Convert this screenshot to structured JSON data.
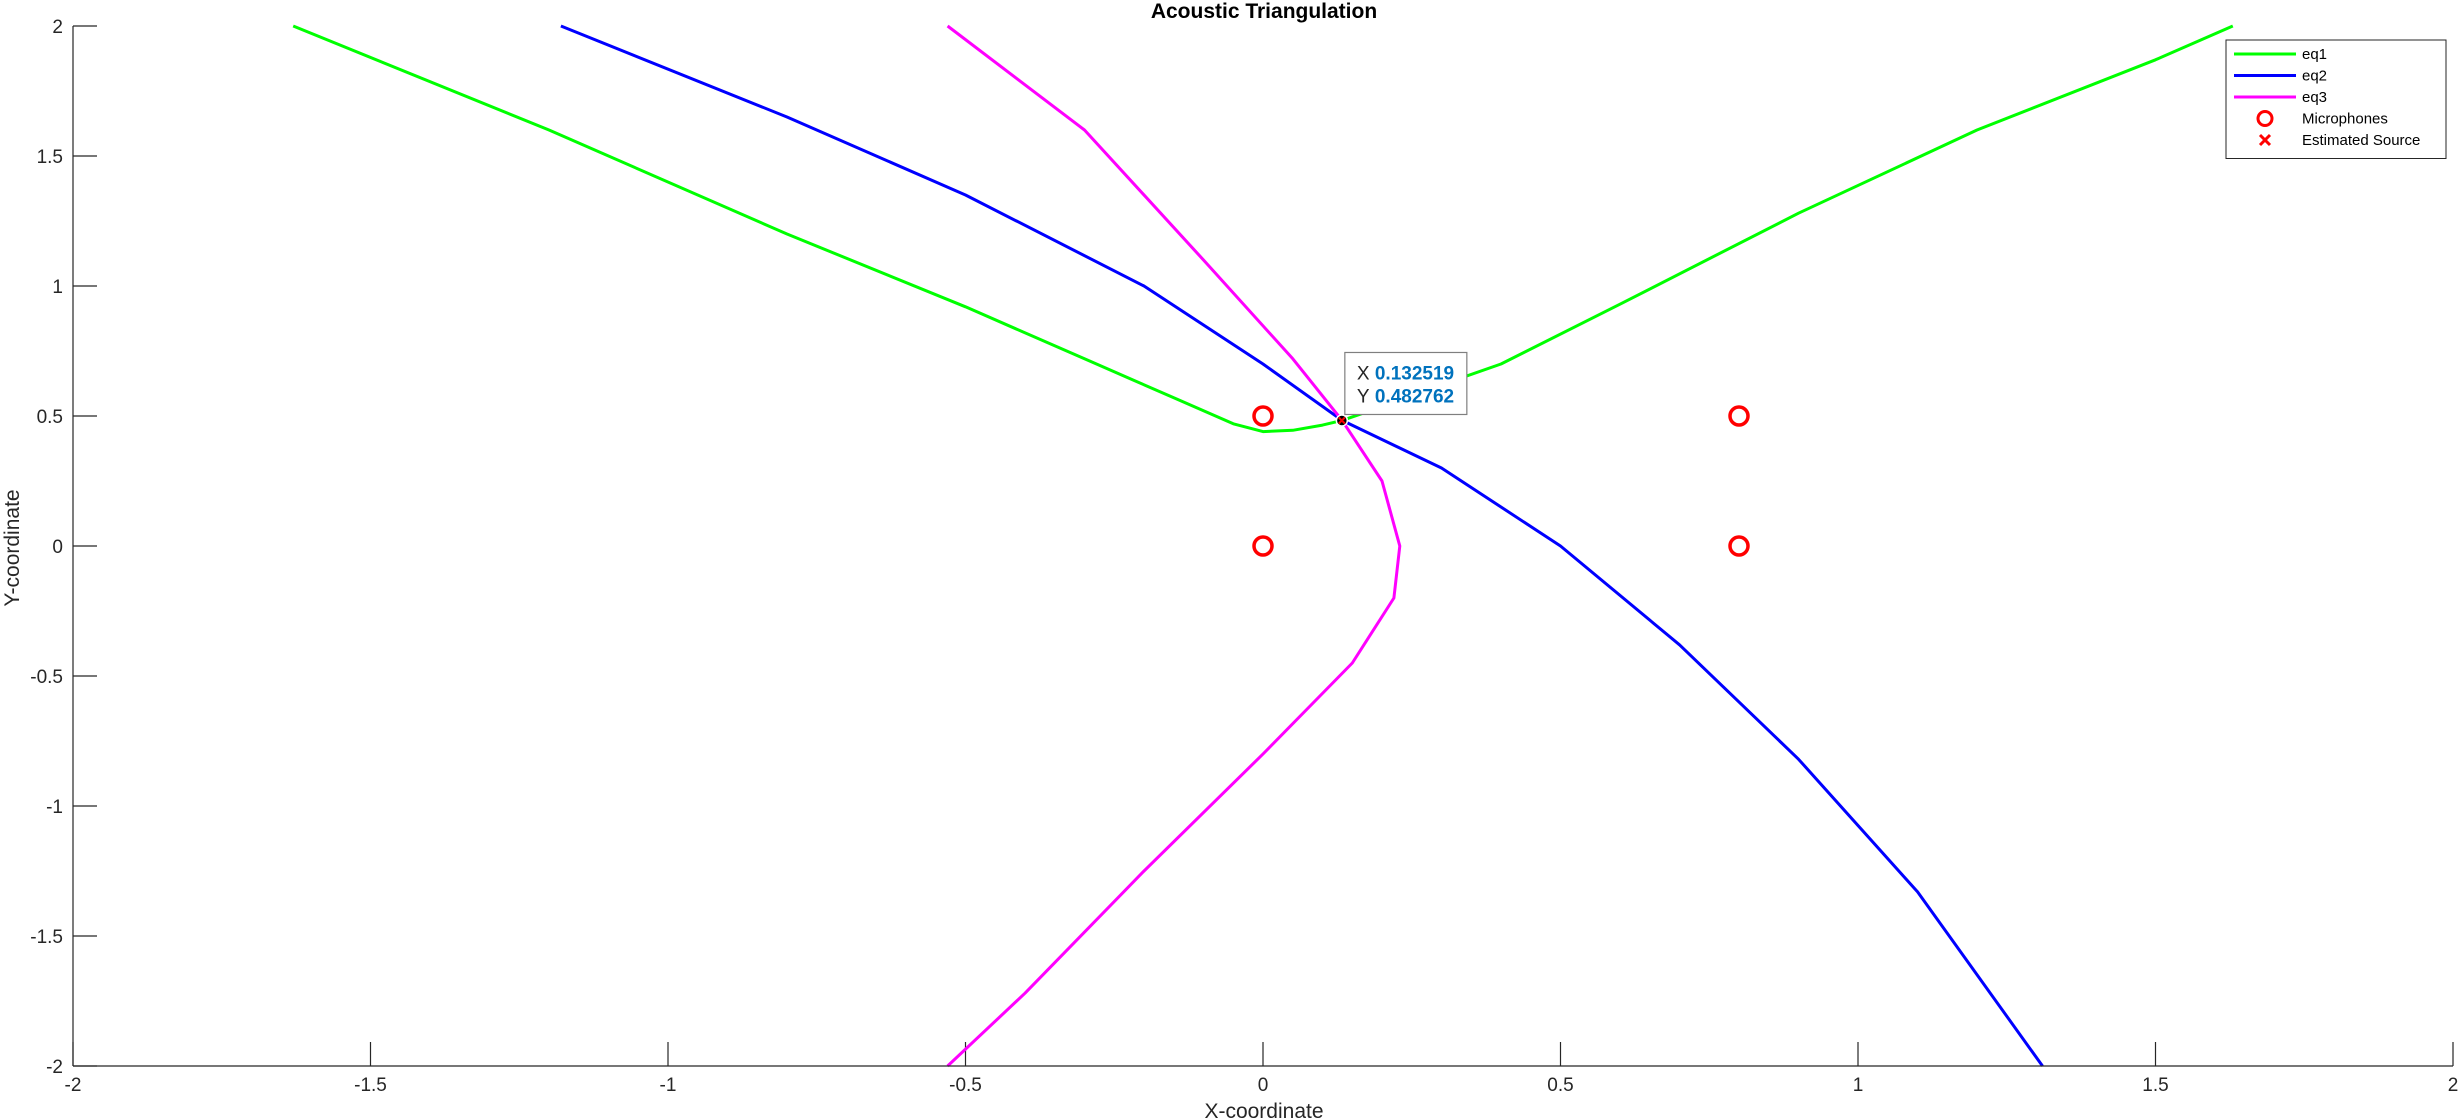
{
  "chart_data": {
    "type": "line",
    "title": "Acoustic Triangulation",
    "xlabel": "X-coordinate",
    "ylabel": "Y-coordinate",
    "xlim": [
      -2,
      2
    ],
    "ylim": [
      -2,
      2
    ],
    "xticks": [
      -2,
      -1.5,
      -1,
      -0.5,
      0,
      0.5,
      1,
      1.5,
      2
    ],
    "xtick_labels": [
      "-2",
      "-1.5",
      "-1",
      "-0.5",
      "0",
      "0.5",
      "1",
      "1.5",
      "2"
    ],
    "yticks": [
      2,
      1.5,
      1,
      0.5,
      0,
      -0.5,
      -1,
      -1.5,
      -2
    ],
    "ytick_labels": [
      "2",
      "1.5",
      "1",
      "0.5",
      "0",
      "-0.5",
      "-1",
      "-1.5",
      "-2"
    ],
    "grid": false,
    "legend_position": "top-right",
    "series": [
      {
        "name": "eq1",
        "color": "#00ff00",
        "x": [
          -1.63,
          -1.2,
          -0.8,
          -0.5,
          -0.3,
          -0.15,
          -0.05,
          0.0,
          0.05,
          0.1,
          0.133,
          0.18,
          0.25,
          0.4,
          0.6,
          0.9,
          1.2,
          1.5,
          1.63
        ],
        "y": [
          2.0,
          1.6,
          1.2,
          0.92,
          0.72,
          0.57,
          0.47,
          0.44,
          0.445,
          0.465,
          0.483,
          0.52,
          0.58,
          0.7,
          0.93,
          1.28,
          1.6,
          1.87,
          2.0
        ]
      },
      {
        "name": "eq2",
        "color": "#0000ff",
        "x": [
          -1.18,
          -0.8,
          -0.5,
          -0.2,
          0.0,
          0.133,
          0.3,
          0.5,
          0.7,
          0.9,
          1.1,
          1.31
        ],
        "y": [
          2.0,
          1.65,
          1.35,
          1.0,
          0.7,
          0.483,
          0.3,
          0.0,
          -0.38,
          -0.82,
          -1.33,
          -2.0
        ]
      },
      {
        "name": "eq3",
        "color": "#ff00ff",
        "x": [
          -0.53,
          -0.3,
          -0.1,
          0.05,
          0.133,
          0.2,
          0.23,
          0.22,
          0.15,
          0.0,
          -0.2,
          -0.4,
          -0.53
        ],
        "y": [
          2.0,
          1.6,
          1.1,
          0.72,
          0.483,
          0.25,
          0.0,
          -0.2,
          -0.45,
          -0.8,
          -1.25,
          -1.72,
          -2.0
        ]
      }
    ],
    "markers": [
      {
        "name": "Microphones",
        "symbol": "circle",
        "color": "#ff0000",
        "x": [
          0,
          0,
          0.8,
          0.8
        ],
        "y": [
          0,
          0.5,
          0,
          0.5
        ]
      },
      {
        "name": "Estimated Source",
        "symbol": "x",
        "color": "#ff0000",
        "x": [
          0.132519
        ],
        "y": [
          0.482762
        ]
      }
    ],
    "datatip": {
      "x_key": "X",
      "y_key": "Y",
      "x_value": "0.132519",
      "y_value": "0.482762",
      "value_color": "#0072bd"
    }
  }
}
